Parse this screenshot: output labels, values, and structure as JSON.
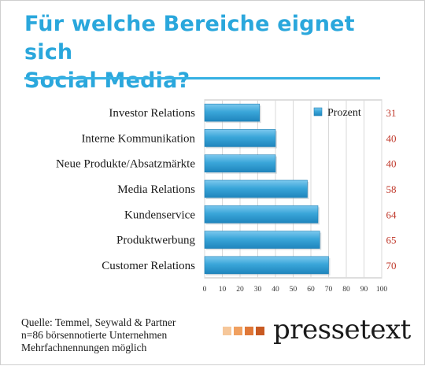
{
  "title_line1": "Für welche Bereiche eignet sich",
  "title_line2": "Social Media?",
  "chart_data": {
    "type": "bar",
    "orientation": "horizontal",
    "categories": [
      "Investor Relations",
      "Interne Kommunikation",
      "Neue Produkte/Absatzmärkte",
      "Media Relations",
      "Kundenservice",
      "Produktwerbung",
      "Customer Relations"
    ],
    "series": [
      {
        "name": "Prozent",
        "values": [
          31,
          40,
          40,
          58,
          64,
          65,
          70
        ]
      }
    ],
    "xlim": [
      0,
      100
    ],
    "xticks": [
      0,
      10,
      20,
      30,
      40,
      50,
      60,
      70,
      80,
      90,
      100
    ],
    "grid": true,
    "legend": "top-right",
    "bar_color": "#3aa6d9",
    "value_label_color": "#c0392b"
  },
  "footer": {
    "line1": "Quelle: Temmel, Seywald & Partner",
    "line2": "n=86 börsennotierte Unternehmen",
    "line3": "Mehrfachnennungen möglich"
  },
  "logo": {
    "text": "pressetext",
    "square_colors": [
      "#f6c79a",
      "#f0a060",
      "#e07838",
      "#c85a22"
    ]
  }
}
